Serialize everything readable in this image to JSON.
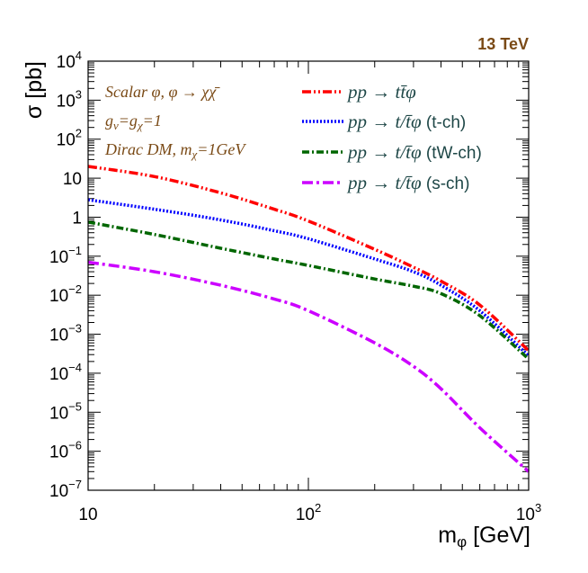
{
  "chart_data": {
    "type": "line",
    "scale": {
      "x": "log",
      "y": "log"
    },
    "xlim": [
      10,
      1000
    ],
    "ylim": [
      1e-07,
      10000
    ],
    "x_ticks": [
      {
        "value": 10,
        "label": "10"
      },
      {
        "value": 100,
        "base": "10",
        "exp": "2"
      },
      {
        "value": 1000,
        "base": "10",
        "exp": "3"
      }
    ],
    "y_ticks": [
      {
        "value": 10000,
        "base": "10",
        "exp": "4"
      },
      {
        "value": 1000,
        "base": "10",
        "exp": "3"
      },
      {
        "value": 100,
        "base": "10",
        "exp": "2"
      },
      {
        "value": 10,
        "label": "10"
      },
      {
        "value": 1,
        "label": "1"
      },
      {
        "value": 0.1,
        "base": "10",
        "exp": "−1"
      },
      {
        "value": 0.01,
        "base": "10",
        "exp": "−2"
      },
      {
        "value": 0.001,
        "base": "10",
        "exp": "−3"
      },
      {
        "value": 0.0001,
        "base": "10",
        "exp": "−4"
      },
      {
        "value": 1e-05,
        "base": "10",
        "exp": "−5"
      },
      {
        "value": 1e-06,
        "base": "10",
        "exp": "−6"
      },
      {
        "value": 1e-07,
        "base": "10",
        "exp": "−7"
      }
    ],
    "ylabel": "σ [pb]",
    "xlabel": {
      "main": "m",
      "sub": "φ",
      "unit": " [GeV]"
    },
    "energy_label": "13 TeV",
    "annotations": {
      "line1": "Scalar φ, φ → χχ̄",
      "line2": {
        "g": "g",
        "v": "v",
        "eq": "=g",
        "chi": "χ",
        "one": "=1"
      },
      "line3": {
        "text": "Dirac DM, m",
        "chi": "χ",
        "mass": "=1GeV"
      }
    },
    "series": [
      {
        "name": "ttphi",
        "legend": {
          "pp": "pp → ",
          "proc": "tt̄φ",
          "ch": ""
        },
        "color": "#ff0000",
        "dash": "10,3,2,3,2,3",
        "points": [
          [
            10,
            20
          ],
          [
            20,
            11
          ],
          [
            40,
            4.2
          ],
          [
            70,
            1.6
          ],
          [
            100,
            0.8
          ],
          [
            200,
            0.15
          ],
          [
            300,
            0.052
          ],
          [
            400,
            0.023
          ],
          [
            600,
            0.0056
          ],
          [
            1000,
            0.00038
          ]
        ]
      },
      {
        "name": "t-channel",
        "legend": {
          "pp": "pp → ",
          "proc": "t/t̄φ",
          "ch": " (t-ch)"
        },
        "color": "#0000ff",
        "dash": "2,2",
        "points": [
          [
            10,
            2.8
          ],
          [
            20,
            1.6
          ],
          [
            40,
            0.85
          ],
          [
            70,
            0.45
          ],
          [
            100,
            0.28
          ],
          [
            200,
            0.085
          ],
          [
            300,
            0.04
          ],
          [
            400,
            0.018
          ],
          [
            600,
            0.004
          ],
          [
            1000,
            0.00028
          ]
        ]
      },
      {
        "name": "tW-channel",
        "legend": {
          "pp": "pp → ",
          "proc": "t/t̄φ",
          "ch": " (tW-ch)"
        },
        "color": "#006600",
        "dash": "8,3,2,3",
        "points": [
          [
            10,
            0.75
          ],
          [
            20,
            0.36
          ],
          [
            40,
            0.16
          ],
          [
            70,
            0.085
          ],
          [
            100,
            0.058
          ],
          [
            200,
            0.026
          ],
          [
            300,
            0.017
          ],
          [
            400,
            0.011
          ],
          [
            600,
            0.003
          ],
          [
            1000,
            0.00023
          ]
        ]
      },
      {
        "name": "s-channel",
        "legend": {
          "pp": "pp → ",
          "proc": "t/t̄φ",
          "ch": " (s-ch)"
        },
        "color": "#cc00ff",
        "dash": "12,4,3,4",
        "points": [
          [
            10,
            0.07
          ],
          [
            20,
            0.04
          ],
          [
            40,
            0.018
          ],
          [
            70,
            0.008
          ],
          [
            100,
            0.004
          ],
          [
            200,
            0.0006
          ],
          [
            300,
            0.00015
          ],
          [
            400,
            4e-05
          ],
          [
            600,
            4e-06
          ],
          [
            1000,
            3e-07
          ]
        ]
      }
    ]
  }
}
